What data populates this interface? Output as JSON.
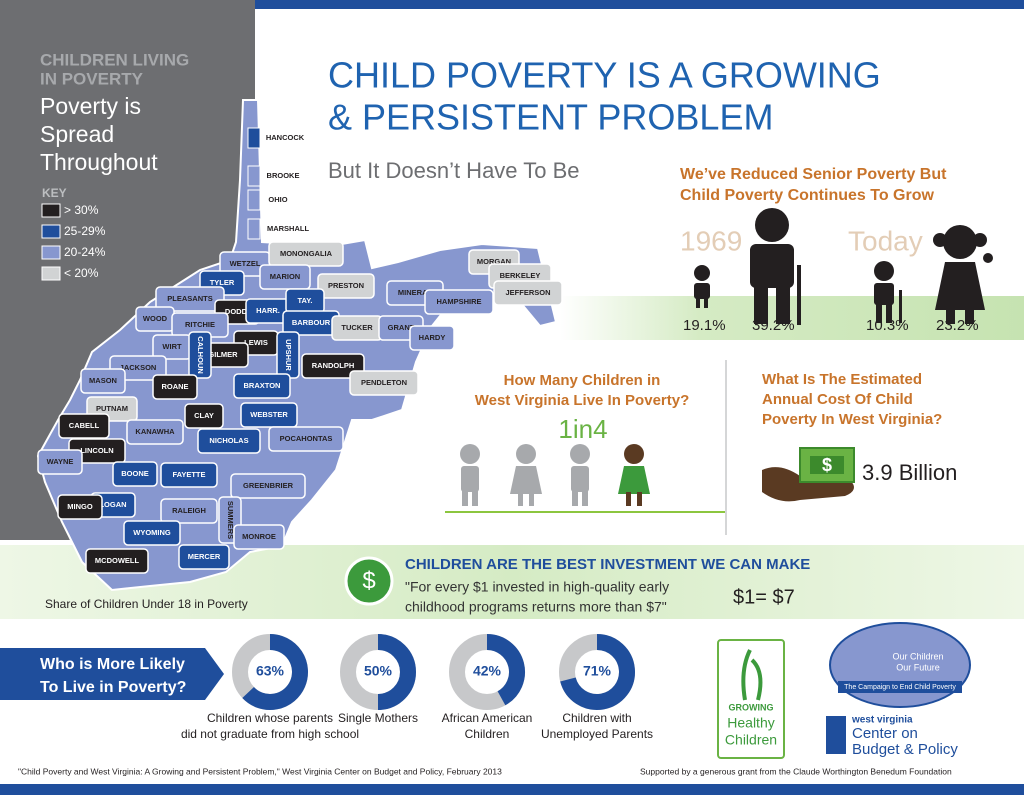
{
  "sidebar": {
    "heading_lines": [
      "CHILDREN LIVING",
      "IN POVERTY"
    ],
    "title_lines": [
      "Poverty is",
      "Spread",
      "Throughout"
    ],
    "key_title": "KEY",
    "key": [
      {
        "label": "> 30%",
        "color": "#231f20"
      },
      {
        "label": "25-29%",
        "color": "#1f4e9c"
      },
      {
        "label": "20-24%",
        "color": "#8797cf"
      },
      {
        "label": "< 20%",
        "color": "#d1d3d4"
      }
    ]
  },
  "map": {
    "caption": "Share of Children Under 18 in Poverty",
    "counties": [
      {
        "name": "HANCOCK",
        "level": 1
      },
      {
        "name": "BROOKE",
        "level": 2
      },
      {
        "name": "OHIO",
        "level": 2
      },
      {
        "name": "MARSHALL",
        "level": 2
      },
      {
        "name": "WETZEL",
        "level": 2
      },
      {
        "name": "MONONGALIA",
        "level": 3
      },
      {
        "name": "MARION",
        "level": 2
      },
      {
        "name": "PRESTON",
        "level": 3
      },
      {
        "name": "MORGAN",
        "level": 3
      },
      {
        "name": "BERKELEY",
        "level": 3
      },
      {
        "name": "JEFFERSON",
        "level": 3
      },
      {
        "name": "MINERAL",
        "level": 2
      },
      {
        "name": "HAMPSHIRE",
        "level": 2
      },
      {
        "name": "TYLER",
        "level": 1
      },
      {
        "name": "PLEASANTS",
        "level": 2
      },
      {
        "name": "DODD.",
        "level": 0
      },
      {
        "name": "HARR.",
        "level": 1
      },
      {
        "name": "TAY.",
        "level": 1
      },
      {
        "name": "BARBOUR",
        "level": 1
      },
      {
        "name": "TUCKER",
        "level": 3
      },
      {
        "name": "GRANT",
        "level": 2
      },
      {
        "name": "HARDY",
        "level": 2
      },
      {
        "name": "WOOD",
        "level": 2
      },
      {
        "name": "RITCHIE",
        "level": 2
      },
      {
        "name": "WIRT",
        "level": 2
      },
      {
        "name": "LEWIS",
        "level": 0
      },
      {
        "name": "GILMER",
        "level": 0
      },
      {
        "name": "CALHOUN",
        "level": 1
      },
      {
        "name": "UPSHUR",
        "level": 1
      },
      {
        "name": "RANDOLPH",
        "level": 0
      },
      {
        "name": "JACKSON",
        "level": 2
      },
      {
        "name": "MASON",
        "level": 2
      },
      {
        "name": "ROANE",
        "level": 0
      },
      {
        "name": "BRAXTON",
        "level": 1
      },
      {
        "name": "PENDLETON",
        "level": 3
      },
      {
        "name": "PUTNAM",
        "level": 3
      },
      {
        "name": "CLAY",
        "level": 0
      },
      {
        "name": "WEBSTER",
        "level": 1
      },
      {
        "name": "CABELL",
        "level": 0
      },
      {
        "name": "KANAWHA",
        "level": 2
      },
      {
        "name": "NICHOLAS",
        "level": 1
      },
      {
        "name": "POCAHONTAS",
        "level": 2
      },
      {
        "name": "LINCOLN",
        "level": 0
      },
      {
        "name": "WAYNE",
        "level": 2
      },
      {
        "name": "BOONE",
        "level": 1
      },
      {
        "name": "FAYETTE",
        "level": 1
      },
      {
        "name": "GREENBRIER",
        "level": 2
      },
      {
        "name": "LOGAN",
        "level": 1
      },
      {
        "name": "MINGO",
        "level": 0
      },
      {
        "name": "RALEIGH",
        "level": 2
      },
      {
        "name": "SUMMERS",
        "level": 2
      },
      {
        "name": "WYOMING",
        "level": 1
      },
      {
        "name": "MONROE",
        "level": 2
      },
      {
        "name": "MERCER",
        "level": 1
      },
      {
        "name": "MCDOWELL",
        "level": 0
      }
    ]
  },
  "header": {
    "title_lines": [
      "CHILD POVERTY IS A GROWING",
      "& PERSISTENT PROBLEM"
    ],
    "subtitle": "But It Doesn’t Have To Be"
  },
  "trend": {
    "heading_lines": [
      "We’ve Reduced Senior Poverty But",
      "Child Poverty Continues To Grow"
    ],
    "periods": [
      {
        "label": "1969",
        "child": "19.1%",
        "senior": "39.2%"
      },
      {
        "label": "Today",
        "senior": "10.3%",
        "child": "23.2%"
      }
    ]
  },
  "ratio": {
    "question_lines": [
      "How Many Children in",
      "West Virginia Live In Poverty?"
    ],
    "answer": "1in4"
  },
  "cost": {
    "question_lines": [
      "What Is The Estimated",
      "Annual Cost Of Child",
      "Poverty In West Virginia?"
    ],
    "symbol": "$",
    "amount": "3.9 Billion"
  },
  "investment": {
    "symbol": "$",
    "heading": "CHILDREN ARE THE BEST INVESTMENT WE CAN MAKE",
    "quote_lines": [
      "\"For every $1 invested in high-quality early",
      "childhood programs returns more than $7\""
    ],
    "ratio": "$1= $7"
  },
  "donuts": {
    "heading_lines": [
      "Who is More Likely",
      "To Live in Poverty?"
    ],
    "values": [
      63,
      50,
      42,
      71
    ],
    "value_labels": [
      "63%",
      "50%",
      "42%",
      "71%"
    ],
    "captions": [
      [
        "Children whose parents",
        "did not graduate from high school"
      ],
      [
        "Single Mothers"
      ],
      [
        "African American",
        "Children"
      ],
      [
        "Children with",
        "Unemployed Parents"
      ]
    ]
  },
  "logos": {
    "growing": [
      "GROWING",
      "Healthy",
      "Children"
    ],
    "campaign": [
      "Our Children",
      "Our Future",
      "The Campaign to End Child Poverty"
    ],
    "center": [
      "west virginia",
      "Center on",
      "Budget & Policy"
    ]
  },
  "footer": {
    "source": "\"Child Poverty and West Virginia: A Growing and Persistent Problem,\" West Virginia Center on Budget and Policy, February 2013",
    "support": "Supported by a generous grant from the Claude Worthington Benedum Foundation"
  }
}
